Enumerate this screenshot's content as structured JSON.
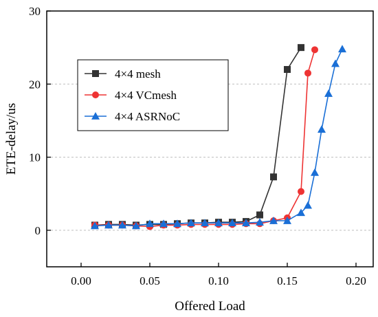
{
  "chart_data": {
    "type": "line",
    "xlabel": "Offered Load",
    "ylabel": "ETE-delay/us",
    "xlim": [
      -0.025,
      0.2125
    ],
    "ylim": [
      -5,
      30
    ],
    "xticks": [
      "0.00",
      "0.05",
      "0.10",
      "0.15",
      "0.20"
    ],
    "xtick_values": [
      0.0,
      0.05,
      0.1,
      0.15,
      0.2
    ],
    "yticks": [
      "0",
      "10",
      "20",
      "30"
    ],
    "ytick_values": [
      0,
      10,
      20,
      30
    ],
    "grid": "horizontal dashed",
    "legend_position": "upper-left",
    "series": [
      {
        "name": "4×4 mesh",
        "color": "#333333",
        "marker": "square",
        "x": [
          0.01,
          0.02,
          0.03,
          0.04,
          0.05,
          0.06,
          0.07,
          0.08,
          0.09,
          0.1,
          0.11,
          0.12,
          0.13,
          0.14,
          0.15,
          0.16
        ],
        "y": [
          0.7,
          0.8,
          0.8,
          0.7,
          0.8,
          0.8,
          0.9,
          1.0,
          1.0,
          1.1,
          1.1,
          1.2,
          2.1,
          7.3,
          22.0,
          25.0
        ]
      },
      {
        "name": "4×4 VCmesh",
        "color": "#ee3333",
        "marker": "circle",
        "x": [
          0.01,
          0.02,
          0.03,
          0.04,
          0.05,
          0.06,
          0.07,
          0.08,
          0.09,
          0.1,
          0.11,
          0.12,
          0.13,
          0.14,
          0.15,
          0.16,
          0.165,
          0.17
        ],
        "y": [
          0.7,
          0.7,
          0.7,
          0.6,
          0.5,
          0.7,
          0.7,
          0.8,
          0.8,
          0.8,
          0.8,
          0.9,
          0.9,
          1.3,
          1.7,
          5.3,
          21.5,
          24.7
        ]
      },
      {
        "name": "4×4 ASRNoC",
        "color": "#1a6fd6",
        "marker": "triangle",
        "x": [
          0.01,
          0.02,
          0.03,
          0.04,
          0.05,
          0.06,
          0.07,
          0.08,
          0.09,
          0.1,
          0.11,
          0.12,
          0.13,
          0.14,
          0.15,
          0.16,
          0.165,
          0.17,
          0.175,
          0.18,
          0.185,
          0.19
        ],
        "y": [
          0.6,
          0.7,
          0.7,
          0.6,
          0.9,
          0.9,
          0.9,
          1.0,
          1.0,
          1.0,
          1.0,
          1.0,
          1.1,
          1.3,
          1.3,
          2.4,
          3.4,
          7.9,
          13.8,
          18.7,
          22.8,
          24.8
        ]
      }
    ]
  }
}
